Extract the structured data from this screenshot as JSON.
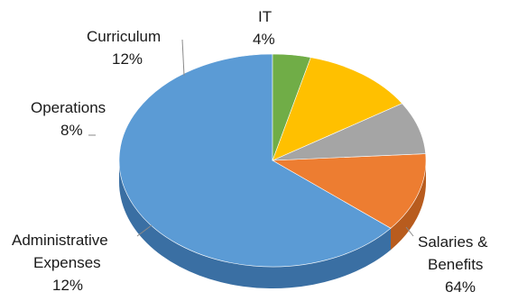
{
  "chart_data": {
    "type": "pie",
    "title": "",
    "three_d": true,
    "categories": [
      "Salaries & Benefits",
      "Administrative Expenses",
      "Operations",
      "Curriculum",
      "IT"
    ],
    "values": [
      64,
      12,
      8,
      12,
      4
    ],
    "unit": "%",
    "labels": [
      {
        "lines": [
          "Salaries &",
          "Benefits"
        ],
        "value": "64%"
      },
      {
        "lines": [
          "Administrative",
          "Expenses"
        ],
        "value": "12%"
      },
      {
        "lines": [
          "Operations"
        ],
        "value": "8%"
      },
      {
        "lines": [
          "Curriculum"
        ],
        "value": "12%"
      },
      {
        "lines": [
          "IT"
        ],
        "value": "4%"
      }
    ],
    "colors": [
      "#5b9bd5",
      "#ed7d31",
      "#a5a5a5",
      "#ffc000",
      "#70ad47"
    ],
    "side_colors": [
      "#3a6fa3",
      "#b85c1e",
      "#7b7b7b",
      "#c99600",
      "#4f8231"
    ],
    "legend": "none"
  }
}
